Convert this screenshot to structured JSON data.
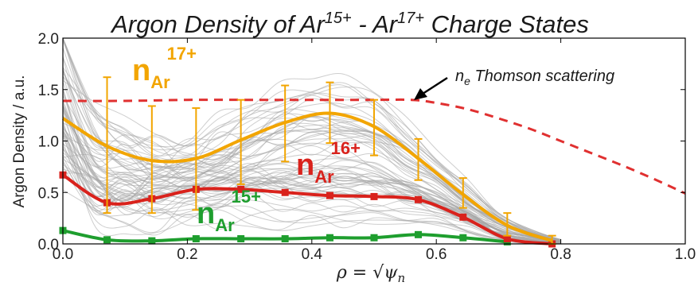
{
  "chart_data": {
    "type": "line",
    "title": {
      "prefix": "Argon Density of Ar",
      "sup1": "15+",
      "mid": " - Ar",
      "sup2": "17+",
      "suffix": " Charge States"
    },
    "xlabel": {
      "rho": "ρ",
      "equals": " = ",
      "sqrt": "√",
      "psi": "ψ",
      "sub": "n"
    },
    "ylabel": "Argon Density / a.u.",
    "xlim": [
      0.0,
      1.0
    ],
    "ylim": [
      0.0,
      2.0
    ],
    "xticks": [
      "0.0",
      "0.2",
      "0.4",
      "0.6",
      "0.8",
      "1.0"
    ],
    "yticks": [
      "0.0",
      "0.5",
      "1.0",
      "1.5",
      "2.0"
    ],
    "grid": false,
    "series": [
      {
        "name": "n_Ar 17+",
        "label": {
          "base": "n",
          "sub": "Ar",
          "sup": "17+"
        },
        "color": "#f2a500",
        "style": "solid",
        "x": [
          0.0,
          0.071,
          0.143,
          0.214,
          0.286,
          0.357,
          0.429,
          0.5,
          0.571,
          0.643,
          0.714,
          0.786
        ],
        "values": [
          1.22,
          0.95,
          0.81,
          0.83,
          1.01,
          1.18,
          1.27,
          1.14,
          0.83,
          0.48,
          0.18,
          0.03
        ],
        "err_x": [
          0.071,
          0.143,
          0.214,
          0.286,
          0.357,
          0.429,
          0.5,
          0.571,
          0.643,
          0.714,
          0.786
        ],
        "err_low": [
          0.3,
          0.3,
          0.33,
          0.58,
          0.8,
          0.98,
          0.86,
          0.62,
          0.35,
          0.08,
          0.0
        ],
        "err_high": [
          1.62,
          1.34,
          1.32,
          1.4,
          1.54,
          1.57,
          1.4,
          1.02,
          0.64,
          0.3,
          0.08
        ]
      },
      {
        "name": "n_Ar 16+",
        "label": {
          "base": "n",
          "sub": "Ar",
          "sup": "16+"
        },
        "color": "#d9221c",
        "style": "solid",
        "x": [
          0.0,
          0.071,
          0.143,
          0.214,
          0.286,
          0.357,
          0.429,
          0.5,
          0.571,
          0.643,
          0.714,
          0.786
        ],
        "values": [
          0.67,
          0.4,
          0.44,
          0.53,
          0.53,
          0.5,
          0.47,
          0.46,
          0.43,
          0.26,
          0.05,
          0.0
        ],
        "markers": true
      },
      {
        "name": "n_Ar 15+",
        "label": {
          "base": "n",
          "sub": "Ar",
          "sup": "15+"
        },
        "color": "#1e9e2e",
        "style": "solid",
        "x": [
          0.0,
          0.071,
          0.143,
          0.214,
          0.286,
          0.357,
          0.429,
          0.5,
          0.571,
          0.643,
          0.714
        ],
        "values": [
          0.13,
          0.04,
          0.03,
          0.05,
          0.05,
          0.05,
          0.06,
          0.06,
          0.09,
          0.06,
          0.02
        ],
        "markers": true
      },
      {
        "name": "n_e Thomson scattering",
        "label": {
          "base": "n",
          "sub": "e",
          "text": " Thomson scattering"
        },
        "color": "#e03030",
        "style": "dashed",
        "x": [
          0.0,
          0.1,
          0.2,
          0.3,
          0.4,
          0.5,
          0.56,
          0.6,
          0.65,
          0.7,
          0.75,
          0.8,
          0.85,
          0.9,
          0.95,
          1.0
        ],
        "values": [
          1.39,
          1.39,
          1.4,
          1.4,
          1.4,
          1.4,
          1.4,
          1.37,
          1.31,
          1.22,
          1.12,
          1.0,
          0.88,
          0.76,
          0.63,
          0.49
        ]
      }
    ],
    "colors": {
      "ensemble": "#a6a6a6",
      "ensemble_mean": "#8a8a8a",
      "arrow": "#000000"
    }
  }
}
